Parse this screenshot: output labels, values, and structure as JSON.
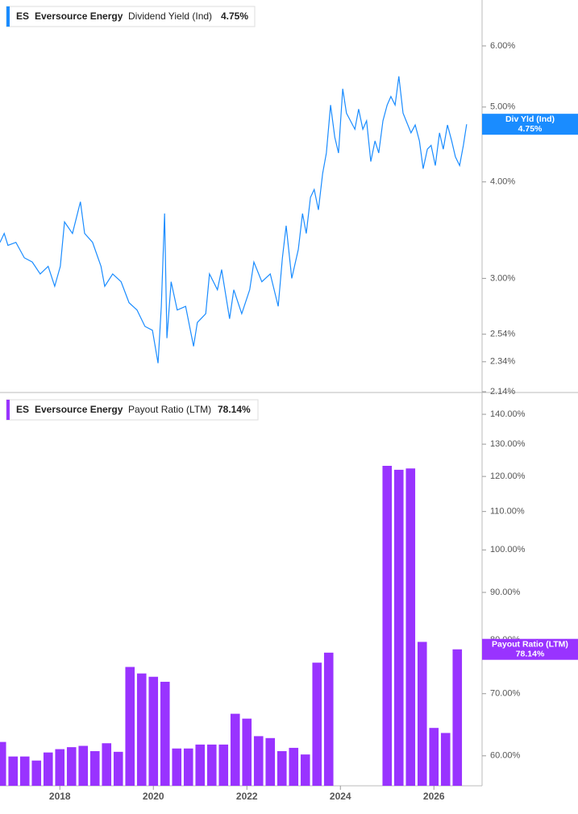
{
  "chart_data": [
    {
      "type": "line",
      "log_scale": true,
      "xlim": [
        2016.72,
        2027.03
      ],
      "ylim": [
        2.14,
        6.88
      ],
      "yticks": [
        {
          "value": 2.14,
          "label": "2.14%"
        },
        {
          "value": 2.34,
          "label": "2.34%"
        },
        {
          "value": 2.54,
          "label": "2.54%"
        },
        {
          "value": 3.0,
          "label": "3.00%"
        },
        {
          "value": 4.0,
          "label": "4.00%"
        },
        {
          "value": 5.0,
          "label": "5.00%"
        },
        {
          "value": 6.0,
          "label": "6.00%"
        }
      ],
      "legend": {
        "ticker": "ES",
        "company": "Eversource Energy",
        "value": "4.75%"
      },
      "price_tag": {
        "name": "Div Yld (Ind)",
        "value": "4.75%",
        "at": 4.75
      },
      "x": [
        2016.72,
        2016.81,
        2016.89,
        2017.06,
        2017.24,
        2017.41,
        2017.58,
        2017.75,
        2017.89,
        2018.01,
        2018.1,
        2018.27,
        2018.44,
        2018.53,
        2018.7,
        2018.88,
        2018.96,
        2019.13,
        2019.31,
        2019.48,
        2019.65,
        2019.82,
        2019.98,
        2020.1,
        2020.17,
        2020.24,
        2020.29,
        2020.38,
        2020.51,
        2020.69,
        2020.86,
        2020.94,
        2021.12,
        2021.2,
        2021.37,
        2021.46,
        2021.63,
        2021.72,
        2021.89,
        2022.06,
        2022.15,
        2022.32,
        2022.5,
        2022.67,
        2022.76,
        2022.84,
        2022.96,
        2023.1,
        2023.19,
        2023.27,
        2023.36,
        2023.44,
        2023.53,
        2023.62,
        2023.7,
        2023.79,
        2023.88,
        2023.96,
        2024.05,
        2024.13,
        2024.31,
        2024.39,
        2024.48,
        2024.56,
        2024.65,
        2024.74,
        2024.82,
        2024.91,
        2025.0,
        2025.08,
        2025.17,
        2025.25,
        2025.34,
        2025.51,
        2025.6,
        2025.69,
        2025.77,
        2025.86,
        2025.94,
        2026.03,
        2026.12,
        2026.2,
        2026.29,
        2026.38,
        2026.46,
        2026.55,
        2026.63,
        2026.7
      ],
      "series": [
        {
          "name": "Dividend Yield (Ind)",
          "color": "#1a8cff",
          "values": [
            3.34,
            3.43,
            3.31,
            3.34,
            3.19,
            3.15,
            3.04,
            3.11,
            2.93,
            3.11,
            3.55,
            3.43,
            3.77,
            3.43,
            3.34,
            3.11,
            2.93,
            3.04,
            2.97,
            2.79,
            2.73,
            2.6,
            2.57,
            2.33,
            2.76,
            3.64,
            2.51,
            2.97,
            2.73,
            2.76,
            2.45,
            2.63,
            2.7,
            3.04,
            2.9,
            3.08,
            2.66,
            2.9,
            2.7,
            2.9,
            3.15,
            2.97,
            3.04,
            2.76,
            3.19,
            3.51,
            3.0,
            3.27,
            3.64,
            3.43,
            3.82,
            3.91,
            3.68,
            4.1,
            4.36,
            5.03,
            4.57,
            4.36,
            5.28,
            4.91,
            4.68,
            4.97,
            4.68,
            4.8,
            4.25,
            4.52,
            4.36,
            4.8,
            5.03,
            5.16,
            5.03,
            5.48,
            4.91,
            4.63,
            4.74,
            4.52,
            4.16,
            4.41,
            4.46,
            4.2,
            4.63,
            4.41,
            4.74,
            4.52,
            4.31,
            4.2,
            4.46,
            4.75
          ]
        }
      ]
    },
    {
      "type": "bar",
      "log_scale": true,
      "xlim": [
        2016.72,
        2027.03
      ],
      "ylim": [
        55.7,
        146.9
      ],
      "xticks": [
        2018,
        2020,
        2022,
        2024,
        2026
      ],
      "yticks": [
        {
          "value": 60,
          "label": "60.00%"
        },
        {
          "value": 70,
          "label": "70.00%"
        },
        {
          "value": 80,
          "label": "80.00%"
        },
        {
          "value": 90,
          "label": "90.00%"
        },
        {
          "value": 100,
          "label": "100.00%"
        },
        {
          "value": 110,
          "label": "110.00%"
        },
        {
          "value": 120,
          "label": "120.00%"
        },
        {
          "value": 130,
          "label": "130.00%"
        },
        {
          "value": 140,
          "label": "140.00%"
        }
      ],
      "legend": {
        "ticker": "ES",
        "company": "Eversource Energy",
        "value": "78.14%"
      },
      "price_tag": {
        "name": "Payout Ratio (LTM)",
        "value": "78.14%",
        "at": 78.14
      },
      "x": [
        2016.75,
        2017.0,
        2017.25,
        2017.5,
        2017.75,
        2018.0,
        2018.25,
        2018.5,
        2018.75,
        2019.0,
        2019.25,
        2019.5,
        2019.75,
        2020.0,
        2020.25,
        2020.5,
        2020.75,
        2021.0,
        2021.25,
        2021.5,
        2021.75,
        2022.0,
        2022.25,
        2022.5,
        2022.75,
        2023.0,
        2023.25,
        2023.5,
        2023.75,
        2025.0,
        2025.25,
        2025.5,
        2025.75,
        2026.0,
        2026.25,
        2026.5
      ],
      "series": [
        {
          "name": "Payout Ratio (LTM)",
          "color": "#9933ff",
          "values": [
            62.1,
            59.9,
            59.9,
            59.3,
            60.5,
            61.0,
            61.3,
            61.5,
            60.7,
            61.9,
            60.6,
            74.8,
            73.6,
            73.0,
            72.1,
            61.1,
            61.1,
            61.7,
            61.7,
            61.7,
            66.6,
            65.8,
            63.0,
            62.7,
            60.7,
            61.2,
            60.2,
            75.6,
            77.5,
            123.2,
            122.0,
            122.4,
            79.6,
            64.3,
            63.5,
            78.14
          ]
        }
      ]
    }
  ]
}
